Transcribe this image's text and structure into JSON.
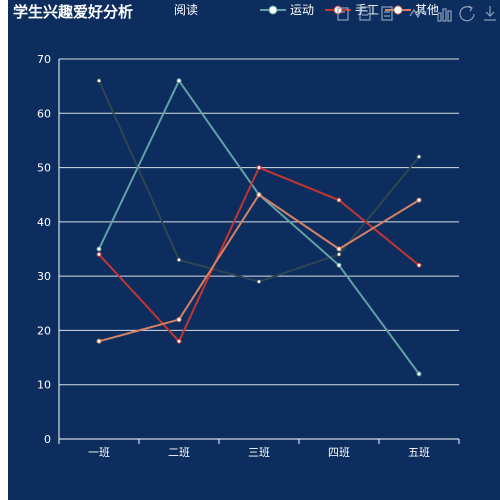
{
  "chart_data": {
    "type": "line",
    "title": "学生兴趣爱好分析",
    "categories": [
      "一班",
      "二班",
      "三班",
      "四班",
      "五班"
    ],
    "ylim": [
      0,
      70
    ],
    "yticks": [
      0,
      10,
      20,
      30,
      40,
      50,
      60,
      70
    ],
    "grid": true,
    "legend_position": "top",
    "series": [
      {
        "name": "阅读",
        "color": "#2f4554",
        "values": [
          66,
          33,
          29,
          34,
          52
        ]
      },
      {
        "name": "运动",
        "color": "#61a0a8",
        "values": [
          35,
          66,
          45,
          32,
          12
        ]
      },
      {
        "name": "手工",
        "color": "#c23531",
        "values": [
          34,
          18,
          50,
          44,
          32
        ]
      },
      {
        "name": "其他",
        "color": "#d48265",
        "values": [
          18,
          22,
          45,
          35,
          44
        ]
      }
    ]
  },
  "colors": {
    "background": "#0c2d5e",
    "text": "#ffffff",
    "toolbox": "#8fa1bd"
  },
  "toolbox": [
    "save-icon",
    "data-view-icon",
    "line-icon",
    "bar-icon",
    "restore-icon",
    "download-icon"
  ]
}
